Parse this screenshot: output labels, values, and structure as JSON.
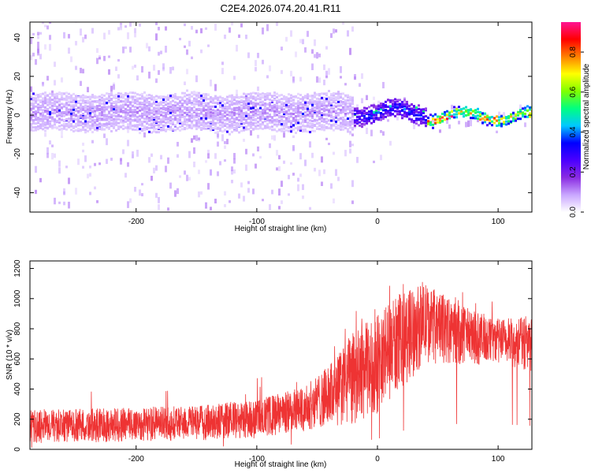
{
  "chart_data": [
    {
      "type": "heatmap",
      "title": "C2E4.2026.074.20.41.R11",
      "xlabel": "Height of straight line (km)",
      "ylabel": "Frequency (Hz)",
      "xlim": [
        -288,
        128
      ],
      "ylim": [
        -50,
        48
      ],
      "xticks": [
        -200,
        -100,
        0,
        100
      ],
      "yticks": [
        -40,
        -20,
        0,
        20,
        40
      ],
      "xtick_labels": [
        "-200",
        "-100",
        "0",
        "100"
      ],
      "ytick_labels": [
        "-40",
        "-20",
        "0",
        "20",
        "40"
      ],
      "colorbar": {
        "label": "Normalized spectral amplitude",
        "range": [
          0,
          0.95
        ],
        "ticks": [
          0.0,
          0.2,
          0.4,
          0.6,
          0.8
        ],
        "tick_labels": [
          "0.0",
          "0.2",
          "0.4",
          "0.6",
          "0.8"
        ],
        "colormap": [
          "#ffffff",
          "#c9a6ff",
          "#8a2be2",
          "#4b00ff",
          "#0000ff",
          "#00c8ff",
          "#00ff80",
          "#80ff00",
          "#ffff00",
          "#ff8000",
          "#ff0000",
          "#ff1493"
        ]
      },
      "bands": [
        {
          "x_range": [
            -288,
            -20
          ],
          "center_hz": 2,
          "halfwidth_hz": 9,
          "amplitude": 0.12,
          "scatter_halfwidth_hz": 50
        },
        {
          "x_range": [
            -20,
            40
          ],
          "center_hz": 2,
          "halfwidth_hz": 4,
          "amplitude": 0.4
        },
        {
          "x_range": [
            40,
            128
          ],
          "center_hz": 0,
          "halfwidth_hz": 2,
          "amplitude": 0.85
        }
      ]
    },
    {
      "type": "line",
      "xlabel": "Height of straight line (km)",
      "ylabel": "SNR (10 * v/v)",
      "xlim": [
        -288,
        128
      ],
      "ylim": [
        0,
        1250
      ],
      "xticks": [
        -200,
        -100,
        0,
        100
      ],
      "yticks": [
        0,
        200,
        400,
        600,
        800,
        1000,
        1200
      ],
      "xtick_labels": [
        "-200",
        "-100",
        "0",
        "100"
      ],
      "ytick_labels": [
        "0",
        "200",
        "400",
        "600",
        "800",
        "1000",
        "1200"
      ],
      "color": "#ee3333",
      "envelope": {
        "x": [
          -288,
          -200,
          -150,
          -100,
          -60,
          -40,
          -20,
          0,
          20,
          40,
          60,
          80,
          100,
          128
        ],
        "low": [
          40,
          50,
          60,
          70,
          120,
          150,
          150,
          230,
          400,
          570,
          560,
          560,
          560,
          520
        ],
        "high": [
          260,
          280,
          290,
          330,
          420,
          560,
          780,
          900,
          1050,
          1100,
          1000,
          920,
          870,
          880
        ]
      }
    }
  ]
}
